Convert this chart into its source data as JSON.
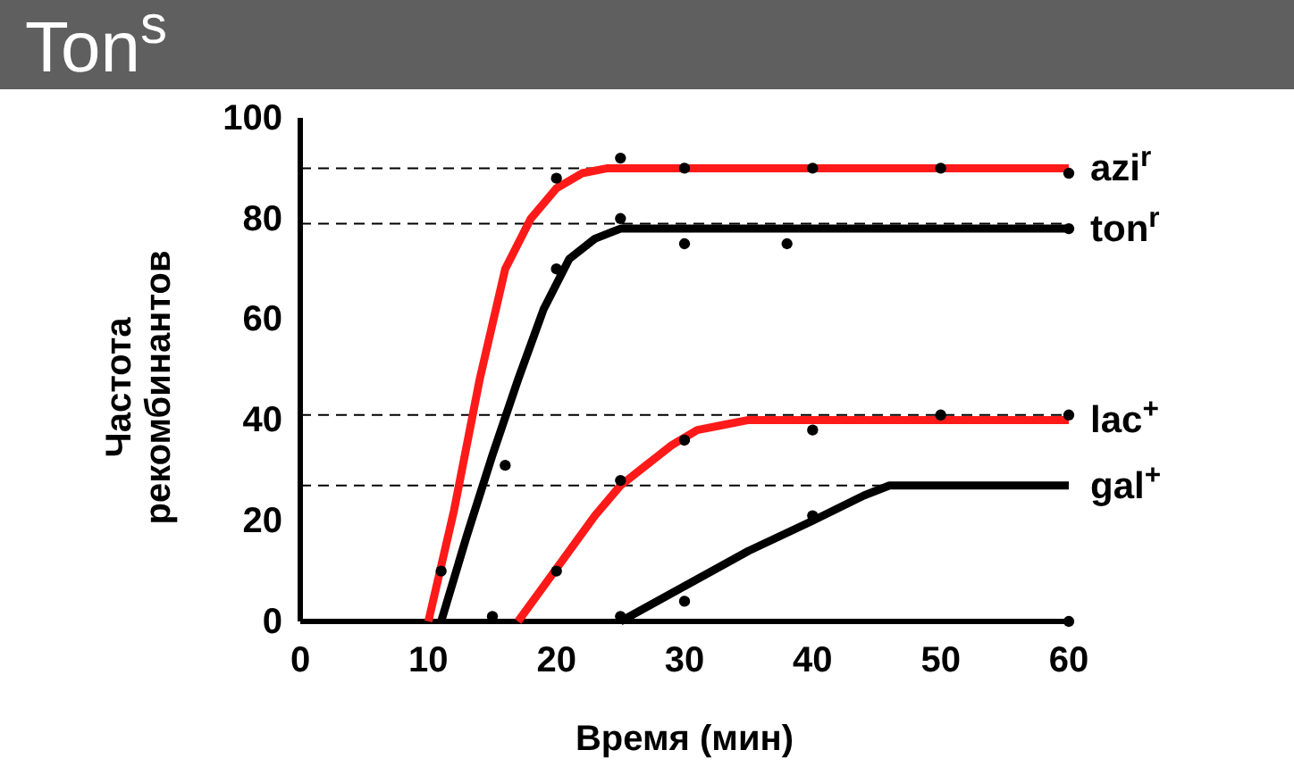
{
  "chart_data": {
    "type": "line",
    "title": "Ton$^{s}$",
    "xlabel": "Время (мин)",
    "ylabel": "Частота\nрекомбинантов",
    "xlim": [
      0,
      60
    ],
    "xticks": [
      0,
      10,
      20,
      30,
      40,
      50,
      60
    ],
    "ylim": [
      0,
      100
    ],
    "yticks": [
      0,
      20,
      40,
      60,
      80,
      100
    ],
    "grid": false,
    "marker": "none",
    "line_style": "solid",
    "series": [
      {
        "name": "azi$^{r}$",
        "color": "#ff1a1a",
        "x": [
          10,
          12,
          14,
          16,
          18,
          20,
          22,
          24,
          60
        ],
        "values": [
          0,
          22,
          48,
          70,
          80,
          86,
          89,
          90,
          90
        ]
      },
      {
        "name": "ton$^{r}$",
        "color": "#000000",
        "x": [
          11,
          13,
          15,
          17,
          19,
          21,
          23,
          25,
          60
        ],
        "values": [
          0,
          17,
          33,
          48,
          62,
          72,
          76,
          78,
          78
        ]
      },
      {
        "name": "lac$^{+}$",
        "color": "#ff1a1a",
        "x": [
          17,
          19,
          21,
          23,
          25,
          27,
          29,
          31,
          33,
          35,
          60
        ],
        "values": [
          0,
          7,
          14,
          21,
          27,
          31,
          35,
          38,
          39,
          40,
          40
        ]
      },
      {
        "name": "gal$^{+}$",
        "color": "#000000",
        "x": [
          25,
          30,
          35,
          40,
          44,
          46,
          60
        ],
        "values": [
          0,
          7,
          14,
          20,
          25,
          27,
          27
        ]
      },
      {
        "type": "scatter",
        "color": "#000000",
        "marker": "circle",
        "x": [
          11,
          15,
          16,
          20,
          25,
          30,
          40,
          50,
          60,
          20,
          25,
          30,
          38,
          60,
          20,
          25,
          30,
          40,
          50,
          60,
          25,
          30,
          40,
          60
        ],
        "values": [
          10,
          1,
          31,
          88,
          92,
          90,
          90,
          90,
          89,
          70,
          80,
          75,
          75,
          78,
          10,
          28,
          36,
          38,
          41,
          41,
          1,
          4,
          21,
          0
        ]
      }
    ],
    "ref_lines": [
      {
        "axis": "y",
        "value": 90,
        "color": "#000000",
        "line_style": "dashed"
      },
      {
        "axis": "y",
        "value": 79,
        "color": "#000000",
        "line_style": "dashed"
      },
      {
        "axis": "y",
        "value": 41,
        "color": "#000000",
        "line_style": "dashed"
      },
      {
        "axis": "y",
        "value": 27,
        "color": "#000000",
        "line_style": "dashed"
      }
    ]
  }
}
